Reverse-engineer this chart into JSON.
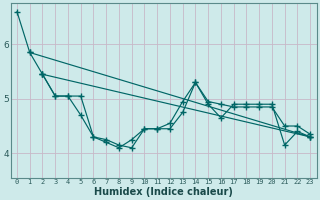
{
  "xlabel": "Humidex (Indice chaleur)",
  "bg_color": "#ceeaea",
  "grid_color": "#b8d8d8",
  "line_color": "#006666",
  "xlim": [
    -0.5,
    23.5
  ],
  "ylim": [
    3.55,
    6.75
  ],
  "yticks": [
    4,
    5,
    6
  ],
  "xticks": [
    0,
    1,
    2,
    3,
    4,
    5,
    6,
    7,
    8,
    9,
    10,
    11,
    12,
    13,
    14,
    15,
    16,
    17,
    18,
    19,
    20,
    21,
    22,
    23
  ],
  "line1": {
    "x": [
      0,
      1,
      2,
      3,
      4,
      5,
      6,
      7,
      8,
      9,
      10,
      11,
      12,
      13,
      14,
      15,
      16,
      17,
      18,
      19,
      20,
      21,
      22,
      23
    ],
    "y": [
      6.6,
      5.85,
      5.45,
      5.05,
      5.05,
      4.7,
      4.3,
      4.25,
      4.15,
      4.1,
      4.45,
      4.45,
      4.55,
      4.95,
      5.3,
      4.9,
      4.65,
      4.9,
      4.9,
      4.9,
      4.9,
      4.15,
      4.4,
      4.3
    ]
  },
  "line2": {
    "x": [
      2,
      3,
      4,
      5,
      6,
      7,
      8,
      9,
      10,
      11,
      12,
      13,
      14,
      15,
      16,
      17,
      18,
      19,
      20,
      21,
      22,
      23
    ],
    "y": [
      5.45,
      5.05,
      5.05,
      5.05,
      4.3,
      4.2,
      4.1,
      4.25,
      4.45,
      4.45,
      4.45,
      4.75,
      5.3,
      4.95,
      4.9,
      4.85,
      4.85,
      4.85,
      4.85,
      4.5,
      4.5,
      4.35
    ]
  },
  "trend1": {
    "x": [
      1,
      23
    ],
    "y": [
      5.85,
      4.3
    ]
  },
  "trend2": {
    "x": [
      2,
      23
    ],
    "y": [
      5.45,
      4.3
    ]
  }
}
